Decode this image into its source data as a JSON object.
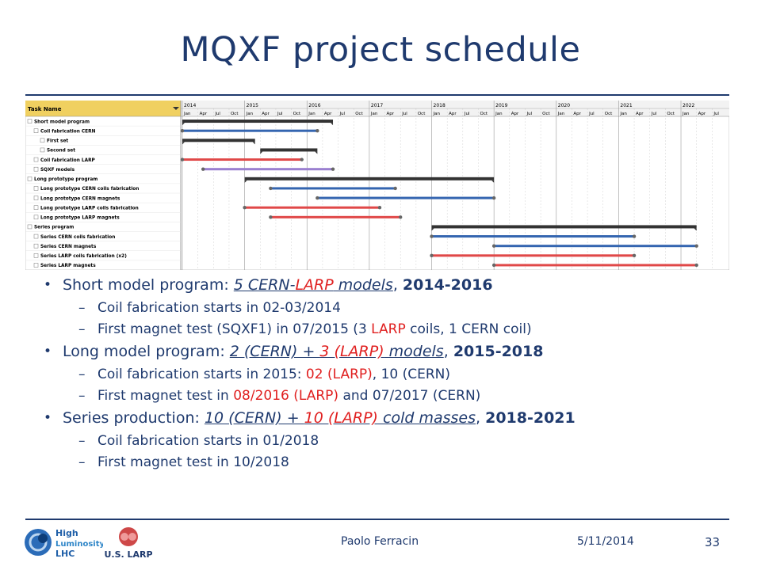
{
  "slide": {
    "title": "MQXF project schedule",
    "page_number": "33",
    "presenter": "Paolo Ferracin",
    "date": "5/11/2014"
  },
  "logos": {
    "hilumi_lines": [
      "High",
      "Luminosity",
      "LHC"
    ],
    "larp": "U.S. LARP"
  },
  "gantt": {
    "task_header": "Task Name",
    "tasks": [
      {
        "name": "Short model program",
        "level": 0,
        "start": "2014-01",
        "end": "2016-06",
        "color": "#333333",
        "type": "summary"
      },
      {
        "name": "Coil fabrication CERN",
        "level": 1,
        "start": "2014-01",
        "end": "2016-03",
        "color": "#3465b0",
        "type": "task"
      },
      {
        "name": "First set",
        "level": 2,
        "start": "2014-01",
        "end": "2015-03",
        "color": "#333333",
        "type": "summary"
      },
      {
        "name": "Second set",
        "level": 2,
        "start": "2015-04",
        "end": "2016-03",
        "color": "#333333",
        "type": "summary"
      },
      {
        "name": "Coil fabrication LARP",
        "level": 1,
        "start": "2014-01",
        "end": "2015-12",
        "color": "#e04848",
        "type": "task"
      },
      {
        "name": "SQXF models",
        "level": 1,
        "start": "2014-05",
        "end": "2016-06",
        "color": "#9a7fd0",
        "type": "task"
      },
      {
        "name": "Long prototype program",
        "level": 0,
        "start": "2015-01",
        "end": "2019-01",
        "color": "#333333",
        "type": "summary"
      },
      {
        "name": "Long prototype CERN coils fabrication",
        "level": 1,
        "start": "2015-06",
        "end": "2017-06",
        "color": "#3465b0",
        "type": "task"
      },
      {
        "name": "Long prototype CERN magnets",
        "level": 1,
        "start": "2016-03",
        "end": "2019-01",
        "color": "#3465b0",
        "type": "task"
      },
      {
        "name": "Long prototype LARP coils fabrication",
        "level": 1,
        "start": "2015-01",
        "end": "2017-03",
        "color": "#e04848",
        "type": "task"
      },
      {
        "name": "Long prototype LARP magnets",
        "level": 1,
        "start": "2015-06",
        "end": "2017-07",
        "color": "#e04848",
        "type": "task"
      },
      {
        "name": "Series program",
        "level": 0,
        "start": "2018-01",
        "end": "2022-04",
        "color": "#333333",
        "type": "summary"
      },
      {
        "name": "Series CERN coils fabrication",
        "level": 1,
        "start": "2018-01",
        "end": "2021-04",
        "color": "#3465b0",
        "type": "task"
      },
      {
        "name": "Series CERN magnets",
        "level": 1,
        "start": "2019-01",
        "end": "2022-04",
        "color": "#3465b0",
        "type": "task"
      },
      {
        "name": "Series LARP coils fabrication (x2)",
        "level": 1,
        "start": "2018-01",
        "end": "2021-04",
        "color": "#e04848",
        "type": "task"
      },
      {
        "name": "Series LARP magnets",
        "level": 1,
        "start": "2019-01",
        "end": "2022-04",
        "color": "#e04848",
        "type": "task"
      }
    ],
    "years": [
      "2014",
      "2015",
      "2016",
      "2017",
      "2018",
      "2019",
      "2020",
      "2021",
      "2022"
    ],
    "quarters": [
      "Jan",
      "Apr",
      "Jul",
      "Oct"
    ],
    "timeline_start": "2014-01",
    "timeline_end": "2022-09",
    "highlight_color": "#f0d060"
  },
  "bullets": {
    "b1": {
      "lead": "Short model program: ",
      "u1": "5 CERN-",
      "u1red": "LARP",
      "u1b": " models",
      "sep": ", ",
      "years": "2014-2016"
    },
    "b1_s1": "Coil fabrication starts in 02-03/2014",
    "b1_s2": {
      "pre": "First magnet test (SQXF1) in 07/2015 (3 ",
      "red": "LARP",
      "post": " coils, 1 CERN coil)"
    },
    "b2": {
      "lead": "Long model program: ",
      "u1": "2 (CERN) + ",
      "u1red": "3 (LARP)",
      "u1b": " models",
      "sep": ", ",
      "years": "2015-2018"
    },
    "b2_s1": {
      "pre": "Coil fabrication starts in 2015: ",
      "red": "02 (LARP)",
      "post": ", 10 (CERN)"
    },
    "b2_s2": {
      "pre": "First magnet test in ",
      "red": "08/2016 (LARP)",
      "post": " and 07/2017 (CERN)"
    },
    "b3": {
      "lead": "Series production: ",
      "u1": "10 (CERN) + ",
      "u1red": "10 (LARP)",
      "u1b": " cold masses",
      "sep": ", ",
      "years": "2018-2021"
    },
    "b3_s1": "Coil fabrication starts in 01/2018",
    "b3_s2": "First magnet test in 10/2018"
  }
}
